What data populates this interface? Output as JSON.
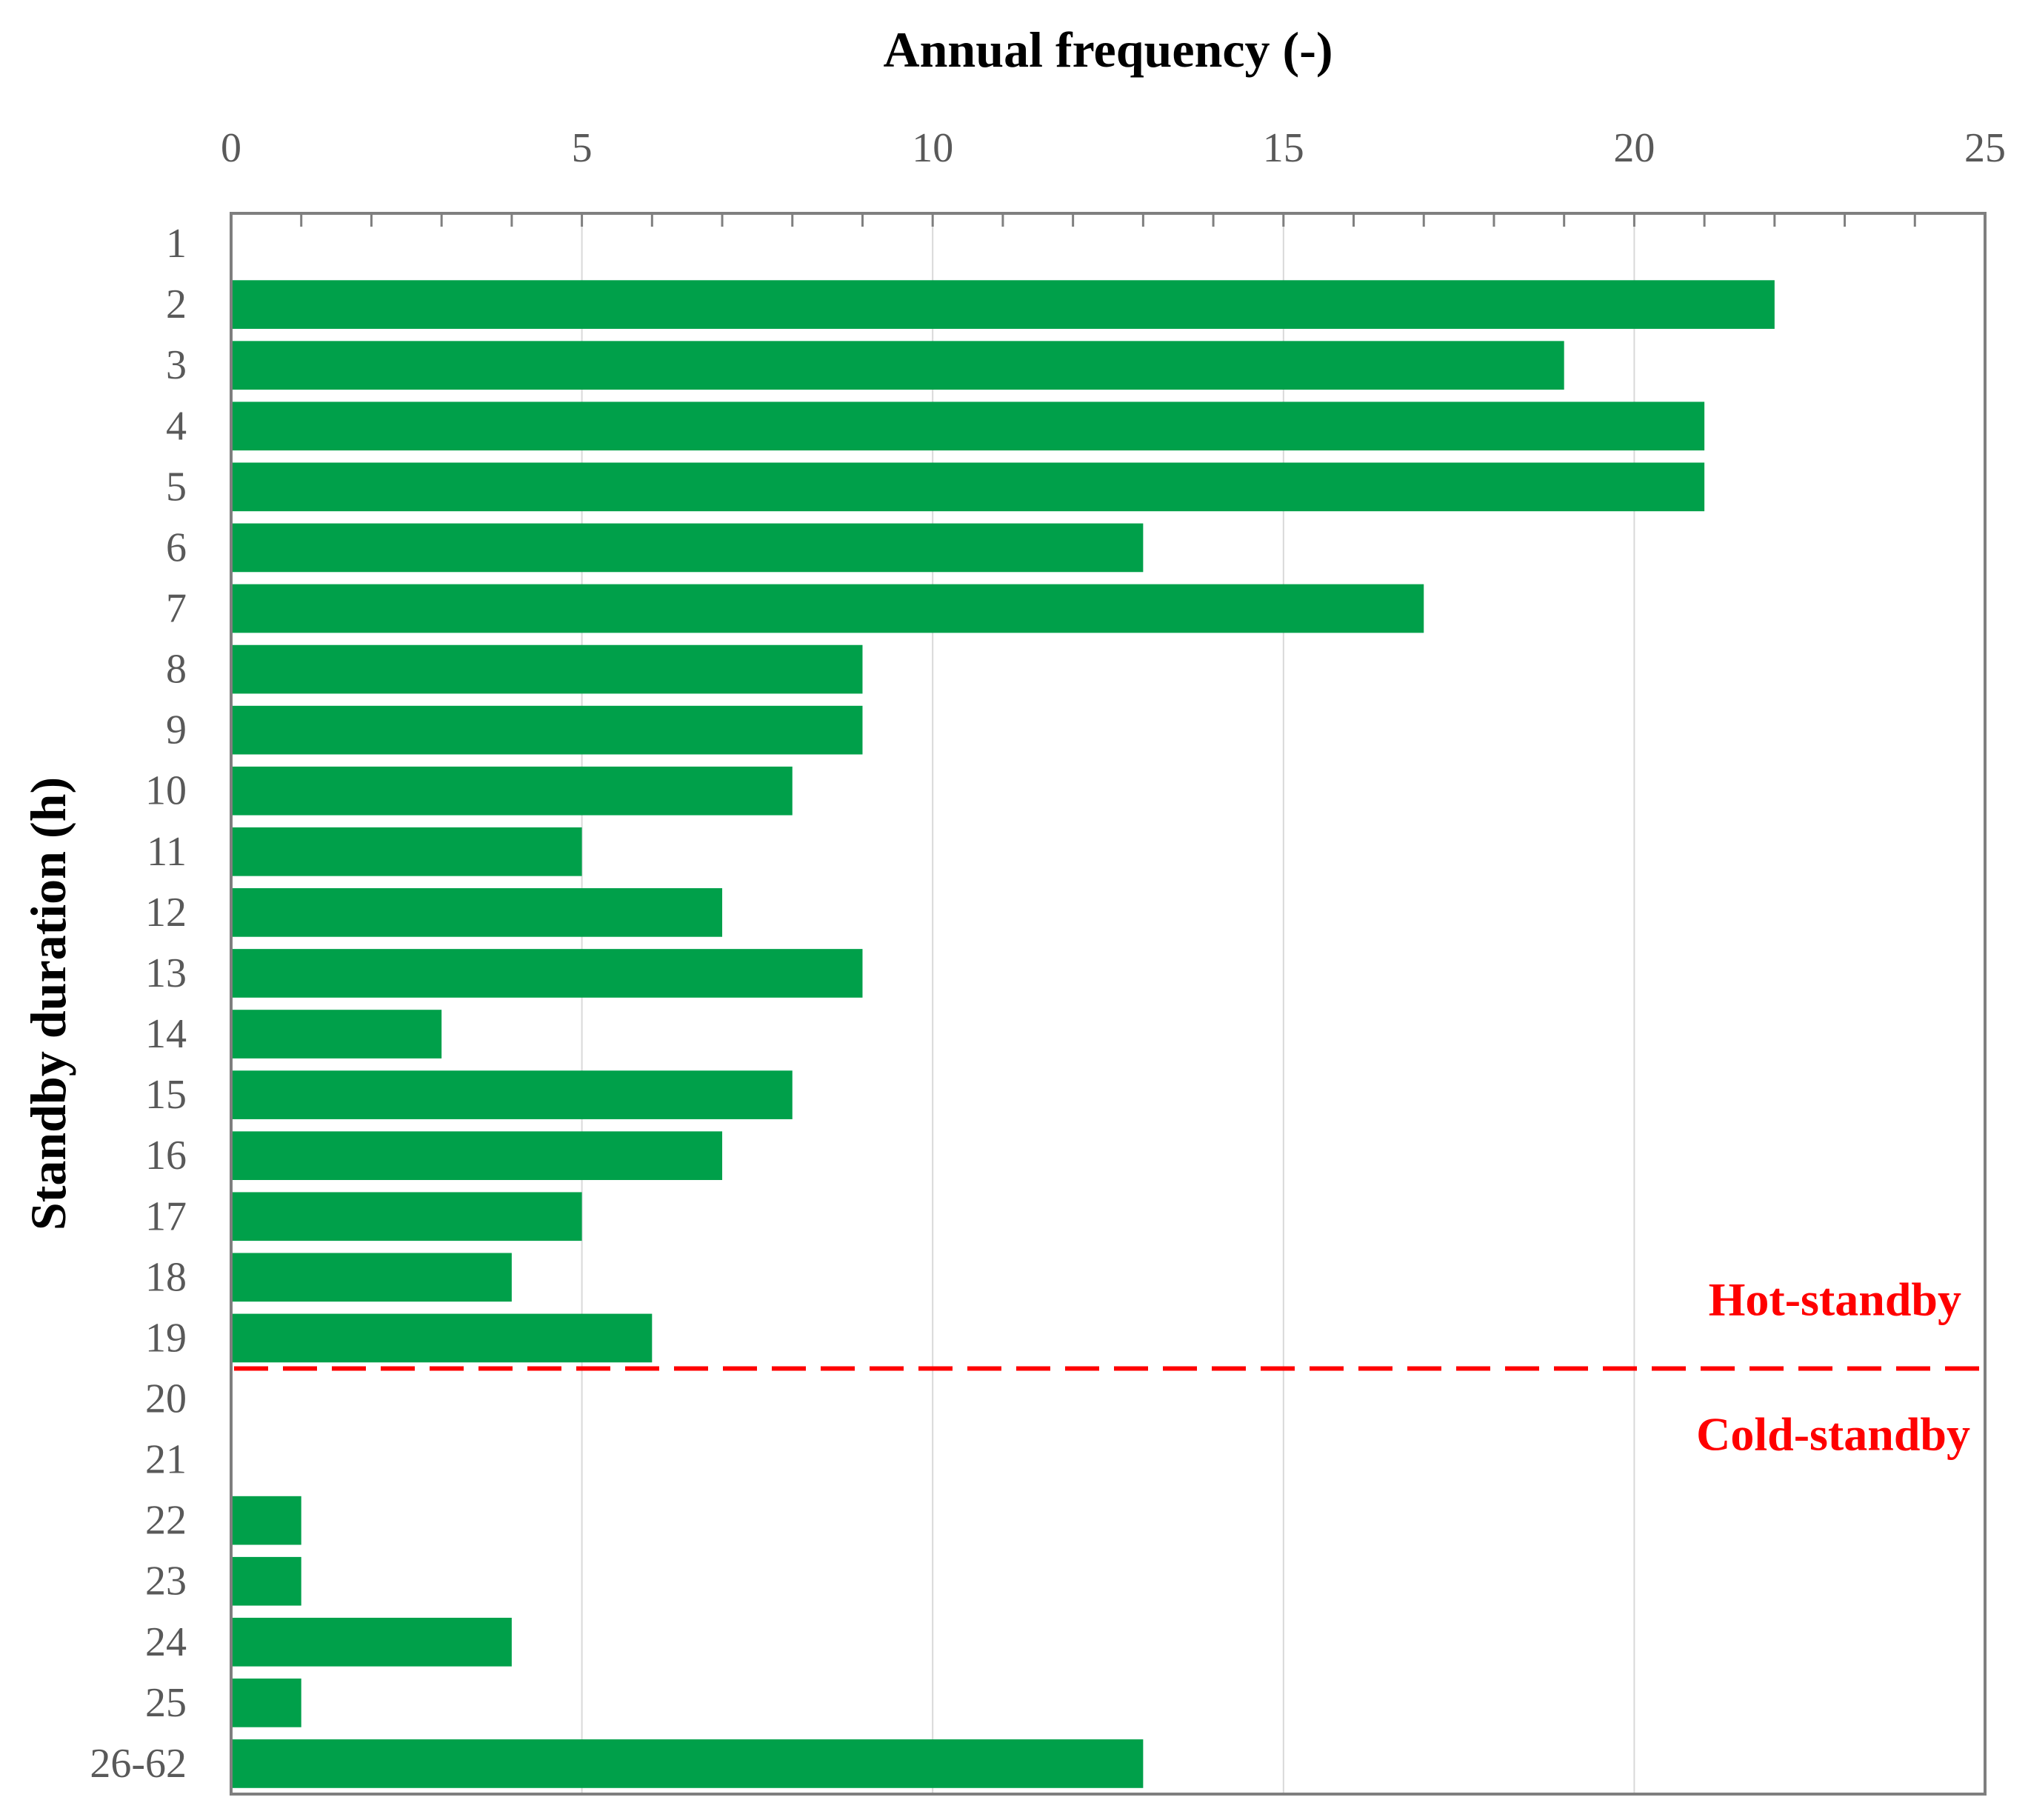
{
  "chart_data": {
    "type": "bar",
    "orientation": "horizontal",
    "title": "",
    "xlabel": "Annual frequency (-)",
    "ylabel": "Standby duration (h)",
    "xlim": [
      0,
      25
    ],
    "x_ticks": [
      0,
      5,
      10,
      15,
      20,
      25
    ],
    "x_tick_labels": [
      "0",
      "5",
      "10",
      "15",
      "20",
      "25"
    ],
    "x_minor_step": 1,
    "x_axis_position": "top",
    "grid": true,
    "categories": [
      "1",
      "2",
      "3",
      "4",
      "5",
      "6",
      "7",
      "8",
      "9",
      "10",
      "11",
      "12",
      "13",
      "14",
      "15",
      "16",
      "17",
      "18",
      "19",
      "20",
      "21",
      "22",
      "23",
      "24",
      "25",
      "26-62"
    ],
    "values": [
      0,
      22,
      19,
      21,
      21,
      13,
      17,
      9,
      9,
      8,
      5,
      7,
      9,
      3,
      8,
      7,
      5,
      4,
      6,
      0,
      0,
      1,
      1,
      4,
      1,
      13
    ],
    "bar_color": "#00a04a",
    "separator": {
      "between": [
        "19",
        "20"
      ],
      "style": "dashed",
      "color": "#ff0000",
      "label_above": "Hot-standby",
      "label_below": "Cold-standby"
    }
  }
}
